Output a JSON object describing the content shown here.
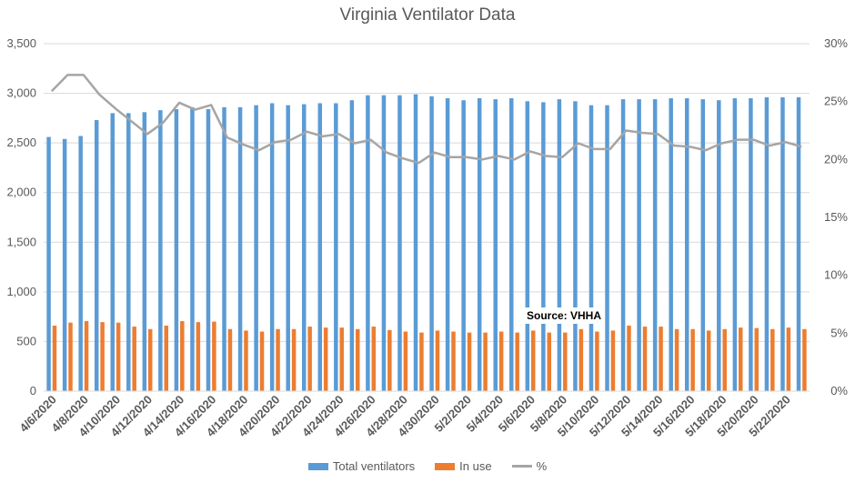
{
  "colors": {
    "total": "#5b9bd5",
    "in_use": "#ed7d31",
    "pct": "#a5a5a5",
    "grid": "#d9d9d9",
    "text": "#595959"
  },
  "source_note": "Source: VHHA",
  "chart_data": {
    "type": "bar",
    "title": "Virginia Ventilator Data",
    "xlabel": "",
    "ylabel": "",
    "ylim": [
      0,
      3500
    ],
    "y2lim": [
      0,
      30
    ],
    "y_ticks": [
      "0",
      "500",
      "1,000",
      "1,500",
      "2,000",
      "2,500",
      "3,000",
      "3,500"
    ],
    "y2_ticks": [
      "0%",
      "5%",
      "10%",
      "15%",
      "20%",
      "25%",
      "30%"
    ],
    "legend_position": "bottom",
    "grid": true,
    "categories": [
      "4/6/2020",
      "4/7/2020",
      "4/8/2020",
      "4/9/2020",
      "4/10/2020",
      "4/11/2020",
      "4/12/2020",
      "4/13/2020",
      "4/14/2020",
      "4/15/2020",
      "4/16/2020",
      "4/17/2020",
      "4/18/2020",
      "4/19/2020",
      "4/20/2020",
      "4/21/2020",
      "4/22/2020",
      "4/23/2020",
      "4/24/2020",
      "4/25/2020",
      "4/26/2020",
      "4/27/2020",
      "4/28/2020",
      "4/29/2020",
      "4/30/2020",
      "5/1/2020",
      "5/2/2020",
      "5/3/2020",
      "5/4/2020",
      "5/5/2020",
      "5/6/2020",
      "5/7/2020",
      "5/8/2020",
      "5/9/2020",
      "5/10/2020",
      "5/11/2020",
      "5/12/2020",
      "5/13/2020",
      "5/14/2020",
      "5/15/2020",
      "5/16/2020",
      "5/17/2020",
      "5/18/2020",
      "5/19/2020",
      "5/20/2020",
      "5/21/2020",
      "5/22/2020",
      "5/23/2020"
    ],
    "tick_labels": [
      "4/6/2020",
      "4/8/2020",
      "4/10/2020",
      "4/12/2020",
      "4/14/2020",
      "4/16/2020",
      "4/18/2020",
      "4/20/2020",
      "4/22/2020",
      "4/24/2020",
      "4/26/2020",
      "4/28/2020",
      "4/30/2020",
      "5/2/2020",
      "5/4/2020",
      "5/6/2020",
      "5/8/2020",
      "5/10/2020",
      "5/12/2020",
      "5/14/2020",
      "5/16/2020",
      "5/18/2020",
      "5/20/2020",
      "5/22/2020"
    ],
    "series": [
      {
        "name": "Total ventilators",
        "type": "bar",
        "axis": "left",
        "values": [
          2560,
          2540,
          2570,
          2730,
          2800,
          2800,
          2810,
          2830,
          2840,
          2860,
          2840,
          2860,
          2860,
          2880,
          2900,
          2880,
          2890,
          2900,
          2900,
          2930,
          2980,
          2980,
          2980,
          2990,
          2970,
          2950,
          2930,
          2950,
          2940,
          2950,
          2920,
          2910,
          2940,
          2920,
          2880,
          2880,
          2940,
          2940,
          2940,
          2950,
          2950,
          2940,
          2930,
          2950,
          2950,
          2960,
          2960,
          2960
        ]
      },
      {
        "name": "In use",
        "type": "bar",
        "axis": "left",
        "values": [
          660,
          690,
          705,
          695,
          690,
          650,
          625,
          660,
          705,
          695,
          700,
          625,
          610,
          600,
          625,
          625,
          650,
          640,
          640,
          625,
          650,
          615,
          600,
          590,
          610,
          600,
          590,
          590,
          600,
          590,
          610,
          590,
          590,
          625,
          600,
          610,
          660,
          650,
          650,
          625,
          625,
          610,
          625,
          640,
          635,
          625,
          640,
          625
        ]
      },
      {
        "name": "%",
        "type": "line",
        "axis": "right",
        "values": [
          25.9,
          27.3,
          27.3,
          25.6,
          24.4,
          23.3,
          22.2,
          23.2,
          24.9,
          24.3,
          24.7,
          21.9,
          21.3,
          20.8,
          21.5,
          21.7,
          22.4,
          22.0,
          22.2,
          21.4,
          21.7,
          20.6,
          20.1,
          19.7,
          20.6,
          20.2,
          20.2,
          20.0,
          20.3,
          20.0,
          20.7,
          20.3,
          20.2,
          21.4,
          20.9,
          20.9,
          22.5,
          22.3,
          22.2,
          21.2,
          21.1,
          20.8,
          21.4,
          21.7,
          21.7,
          21.2,
          21.5,
          21.1
        ]
      }
    ]
  }
}
